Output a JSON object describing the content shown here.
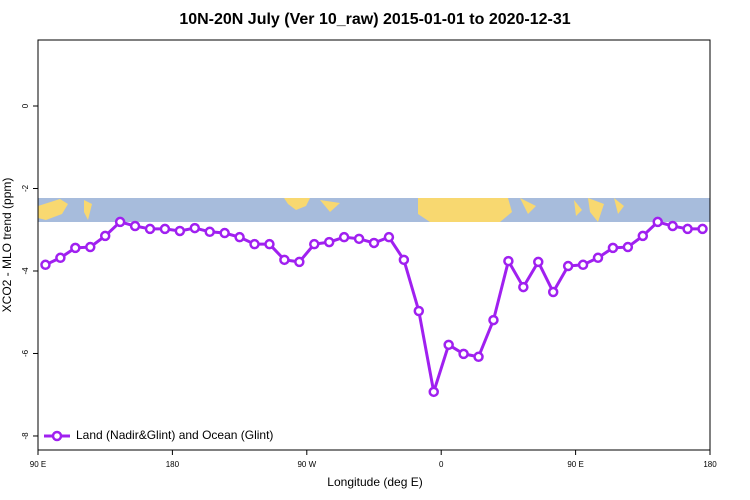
{
  "chart_data": {
    "type": "line",
    "title": "10N-20N July (Ver 10_raw)   2015-01-01 to 2020-12-31",
    "x_label": "Longitude (deg E)",
    "y_label": "XCO2 - MLO trend (ppm)",
    "x": [
      95,
      105,
      115,
      125,
      135,
      145,
      155,
      165,
      175,
      185,
      195,
      205,
      215,
      225,
      235,
      245,
      255,
      265,
      275,
      285,
      295,
      305,
      315,
      325,
      335,
      345,
      355,
      365,
      375,
      385,
      395,
      405,
      415,
      425,
      435,
      445,
      455,
      465,
      475,
      485,
      495,
      505,
      515,
      525,
      535
    ],
    "series": [
      {
        "name": "Land (Nadir&Glint) and Ocean (Glint)",
        "color": "#a020f0",
        "values": [
          -3.85,
          -3.68,
          -3.44,
          -3.42,
          -3.15,
          -2.81,
          -2.91,
          -2.98,
          -2.98,
          -3.03,
          -2.96,
          -3.05,
          -3.08,
          -3.18,
          -3.35,
          -3.35,
          -3.73,
          -3.78,
          -3.35,
          -3.3,
          -3.18,
          -3.22,
          -3.32,
          -3.18,
          -3.73,
          -4.97,
          -6.93,
          -5.79,
          -6.01,
          -6.08,
          -5.19,
          -3.76,
          -4.39,
          -3.78,
          -4.51,
          -3.88,
          -3.85,
          -3.68,
          -3.44,
          -3.42,
          -3.15,
          -2.81,
          -2.91,
          -2.98,
          -2.98
        ]
      }
    ],
    "xlim": [
      90,
      540
    ],
    "xticks": [
      {
        "value": 90,
        "label": "90 E"
      },
      {
        "value": 180,
        "label": "180"
      },
      {
        "value": 270,
        "label": "90 W"
      },
      {
        "value": 360,
        "label": "0"
      },
      {
        "value": 450,
        "label": "90 E"
      },
      {
        "value": 540,
        "label": "180"
      }
    ],
    "ylim": [
      -8.34,
      1.6
    ],
    "yticks": [
      0,
      -2,
      -4,
      -6,
      -8
    ],
    "legend": "bottom-left"
  }
}
